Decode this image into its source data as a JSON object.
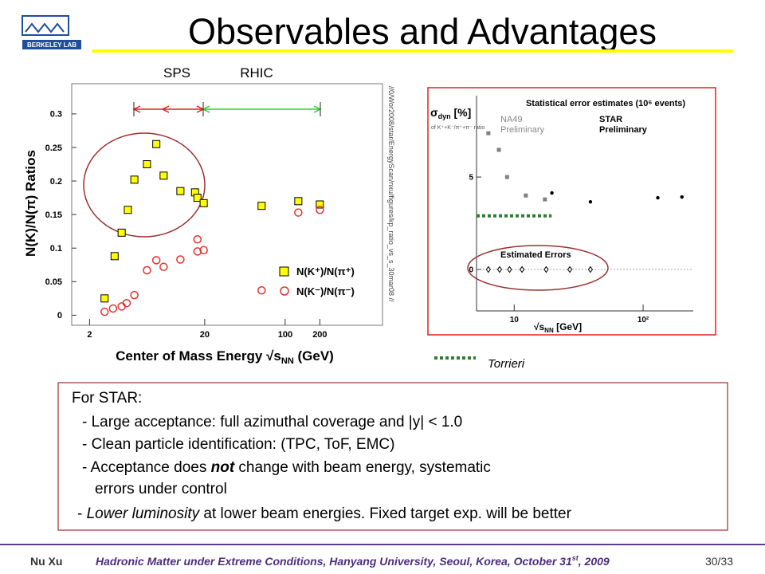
{
  "header": {
    "title": "Observables and Advantages",
    "logo_text": "BERKELEY LAB"
  },
  "left_chart": {
    "type": "scatter",
    "annotations": [
      "SPS",
      "RHIC"
    ],
    "y_label": "N(K)/N(π) Ratios",
    "x_label": [
      "Center of Mass Energy √s",
      "NN",
      " (GeV)"
    ],
    "file_path": "//0/Wor2008/star/EnergyScan/nxu/figures/kp_ratio_vs_s_30mar08 //",
    "xlog": true,
    "xlim": [
      1.4,
      700
    ],
    "xticks": [
      2,
      20,
      100,
      200
    ],
    "ylim": [
      -0.015,
      0.345
    ],
    "yticks": [
      0,
      0.05,
      0.1,
      0.15,
      0.2,
      0.25,
      0.3
    ],
    "series": [
      {
        "name": "N(K⁺)/N(π⁺)",
        "color": "#ffff00",
        "marker": "square",
        "x": [
          2.7,
          3.3,
          3.8,
          4.3,
          4.9,
          6.3,
          7.6,
          8.8,
          12.3,
          16.5,
          17.3,
          19.6,
          62.4,
          130,
          200
        ],
        "values": [
          0.025,
          0.088,
          0.123,
          0.157,
          0.202,
          0.225,
          0.255,
          0.208,
          0.185,
          0.183,
          0.175,
          0.167,
          0.163,
          0.17,
          0.165
        ]
      },
      {
        "name": "N(K⁻)/N(π⁻)",
        "color": "#e8302c",
        "marker": "circle",
        "x": [
          2.7,
          3.2,
          3.8,
          4.2,
          4.9,
          6.3,
          7.6,
          8.8,
          12.3,
          17.3,
          17.3,
          19.6,
          62.4,
          130,
          200
        ],
        "values": [
          0.005,
          0.01,
          0.013,
          0.018,
          0.03,
          0.067,
          0.082,
          0.072,
          0.083,
          0.113,
          0.095,
          0.097,
          0.037,
          0.153,
          0.157
        ]
      }
    ]
  },
  "right_chart": {
    "type": "scatter",
    "title": "Statistical error estimates (10⁶ events)",
    "y_label": [
      "σ",
      "dyn",
      " [%]"
    ],
    "y_sublabel": "of K⁺+K⁻/π⁺+π⁻ ratio",
    "x_label": [
      "√s",
      "NN",
      " [GeV]"
    ],
    "preliminary": [
      "Preliminary",
      "Preliminary"
    ],
    "estimated_label": "Estimated Errors",
    "xlog": true,
    "xlim": [
      5.1,
      245
    ],
    "xticks": [
      10,
      {
        "value": 100,
        "label": "10²"
      }
    ],
    "ylim": [
      -2.24,
      9.4
    ],
    "yticks": [
      0,
      5
    ],
    "series": [
      {
        "name": "NA49",
        "color": "#808080",
        "marker": "square",
        "x": [
          6.3,
          7.6,
          8.8,
          12.3,
          17.3
        ],
        "values": [
          7.37,
          6.47,
          5.0,
          4.0,
          3.79
        ]
      },
      {
        "name": "STAR",
        "color": "#000000",
        "marker": "dot",
        "x": [
          19.6,
          39,
          130,
          200
        ],
        "values": [
          4.14,
          3.66,
          3.88,
          3.92
        ]
      },
      {
        "color": "#000000",
        "marker": "diamond",
        "x": [
          6.3,
          7.7,
          9.2,
          11.5,
          17.7,
          27,
          39
        ],
        "values": [
          0,
          0,
          0,
          0,
          0,
          0,
          0
        ]
      },
      {
        "name": "Torrieri",
        "color": "#2e7d32",
        "marker": "dotted-line",
        "x": [
          5.1,
          19.5
        ],
        "values": [
          2.9,
          2.9
        ]
      }
    ]
  },
  "text_box": {
    "heading": "For STAR:",
    "items": [
      [
        "- Large acceptance: full azimuthal coverage and |y| < 1.0"
      ],
      [
        "- Clean particle identification: (TPC, ToF, EMC)"
      ],
      [
        "- Acceptance does ",
        "not",
        " change with beam energy, systematic",
        "errors under control"
      ],
      [
        "- ",
        "Lower luminosity",
        " at lower beam energies. Fixed target exp. will be better"
      ]
    ]
  },
  "footer": {
    "author": "Nu Xu",
    "event": [
      "Hadronic Matter under Extreme Conditions, Hanyang University, Seoul, Korea, October 31",
      "st",
      ", 2009"
    ],
    "page": "30/33"
  }
}
